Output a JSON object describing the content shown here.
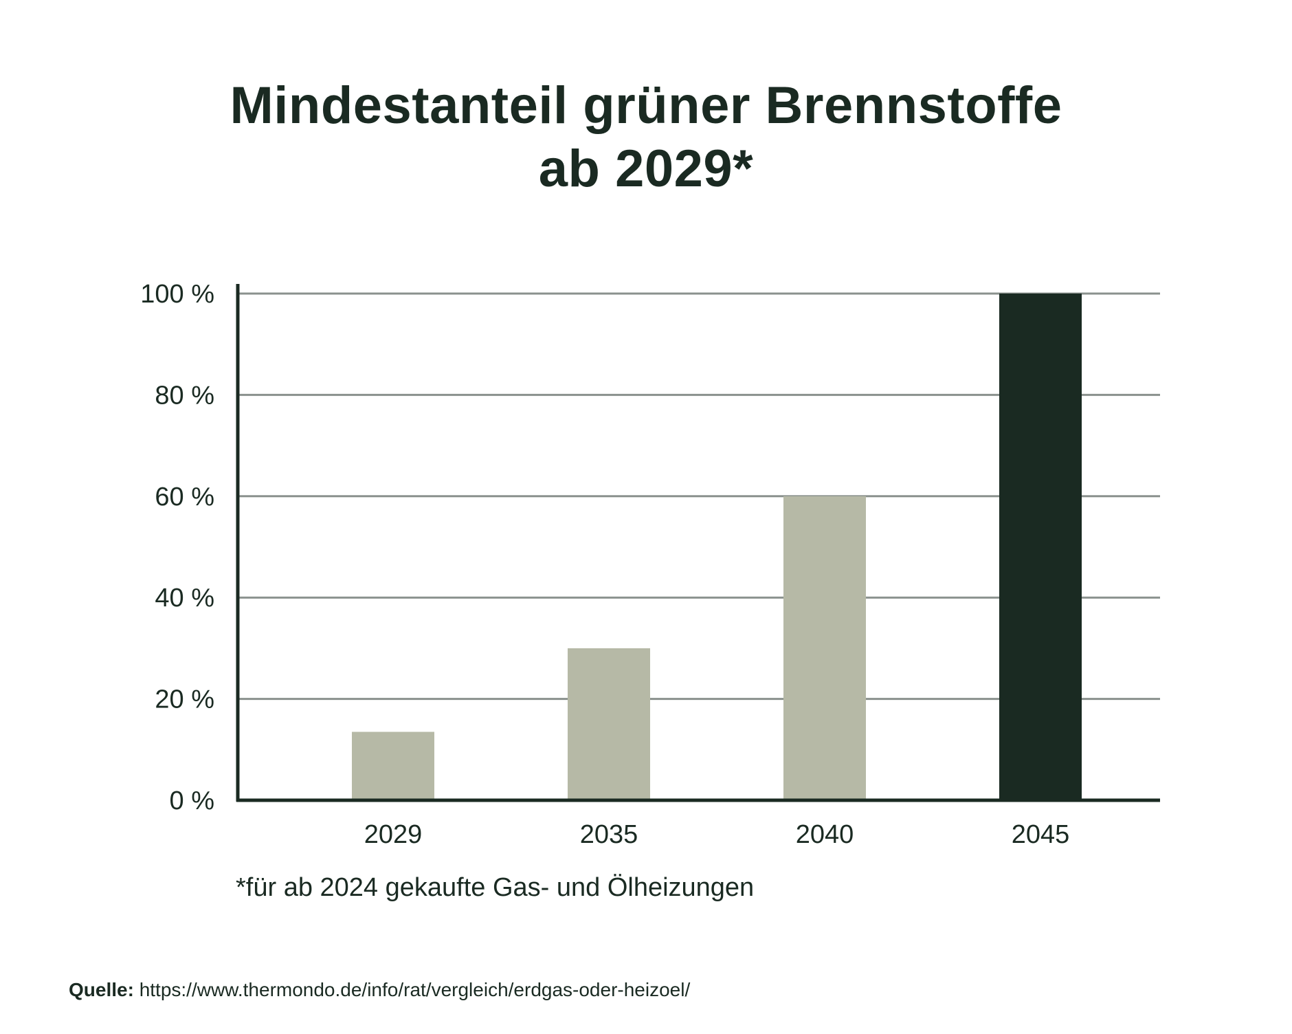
{
  "title_line1": "Mindestanteil grüner Brennstoffe",
  "title_line2": "ab 2029*",
  "footnote": "*für ab 2024 gekaufte Gas- und Ölheizungen",
  "source": {
    "label": "Quelle:",
    "url": "https://www.thermondo.de/info/rat/vergleich/erdgas-oder-heizoel/"
  },
  "colors": {
    "text": "#1a2a22",
    "bar_light": "#b6b9a6",
    "bar_dark": "#1a2a22",
    "grid": "#8a918d"
  },
  "chart_data": {
    "type": "bar",
    "categories": [
      "2029",
      "2035",
      "2040",
      "2045"
    ],
    "values": [
      13.5,
      30,
      60,
      100
    ],
    "bar_colors": [
      "#b6b9a6",
      "#b6b9a6",
      "#b6b9a6",
      "#1a2a22"
    ],
    "title": "Mindestanteil grüner Brennstoffe ab 2029*",
    "xlabel": "",
    "ylabel": "",
    "ylim": [
      0,
      100
    ],
    "yticks": [
      0,
      20,
      40,
      60,
      80,
      100
    ],
    "ytick_labels": [
      "0 %",
      "20 %",
      "40 %",
      "60 %",
      "80 %",
      "100 %"
    ],
    "grid": true,
    "legend": "none"
  }
}
